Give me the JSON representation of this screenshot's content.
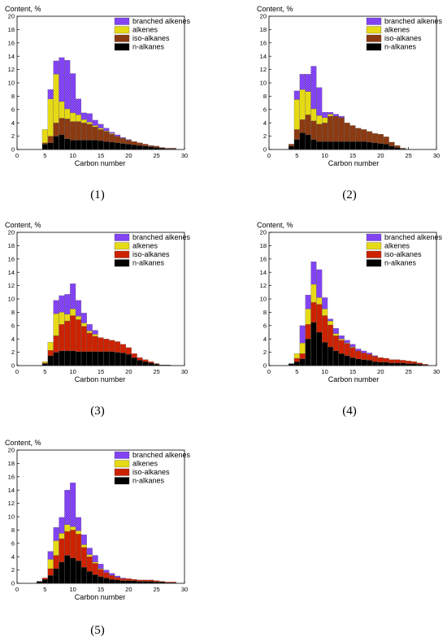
{
  "colors": {
    "n-alkanes": "#000000",
    "iso-alkanes": "#cc2200",
    "iso-alkanes-brown": "#8b3a12",
    "alkenes": "#f2e600",
    "branched alkenes": "#8a4dff",
    "legend_pattern_fill": "#7a3cff"
  },
  "chart_data": [
    {
      "type": "bar",
      "caption": "(1)",
      "title": "",
      "xlabel": "Carbon number",
      "ylabel": "Content, %",
      "xlim": [
        0,
        30
      ],
      "ylim": [
        0,
        20
      ],
      "xticks": [
        0,
        5,
        10,
        15,
        20,
        25,
        30
      ],
      "yticks": [
        0,
        2,
        4,
        6,
        8,
        10,
        12,
        14,
        16,
        18,
        20
      ],
      "stacked": true,
      "legend_position": "top-right",
      "legend": [
        "branched alkenes",
        "alkenes",
        "iso-alkanes",
        "n-alkanes"
      ],
      "iso_color": "#8b3a12",
      "categories": [
        5,
        6,
        7,
        8,
        9,
        10,
        11,
        12,
        13,
        14,
        15,
        16,
        17,
        18,
        19,
        20,
        21,
        22,
        23,
        24,
        25,
        26,
        27,
        28
      ],
      "series": [
        {
          "name": "n-alkanes",
          "values": [
            0.8,
            1.0,
            2.0,
            2.2,
            1.6,
            1.4,
            1.4,
            1.4,
            1.4,
            1.4,
            1.3,
            1.2,
            1.1,
            1.0,
            0.9,
            0.8,
            0.7,
            0.6,
            0.5,
            0.4,
            0.3,
            0.2,
            0.1,
            0.1
          ]
        },
        {
          "name": "iso-alkanes",
          "values": [
            0.2,
            1.0,
            2.0,
            2.5,
            3.0,
            2.8,
            2.8,
            2.6,
            2.4,
            2.0,
            1.7,
            1.5,
            1.2,
            1.0,
            0.8,
            0.6,
            0.5,
            0.4,
            0.3,
            0.2,
            0.2,
            0.1,
            0.1,
            0.1
          ]
        },
        {
          "name": "alkenes",
          "values": [
            2.0,
            5.6,
            7.3,
            2.5,
            1.5,
            1.3,
            1.0,
            0.5,
            0.3,
            0.2,
            0.2,
            0.1,
            0.1,
            0.0,
            0.0,
            0.0,
            0.0,
            0.0,
            0.0,
            0.0,
            0.0,
            0.0,
            0.0,
            0.0
          ]
        },
        {
          "name": "branched alkenes",
          "values": [
            0.0,
            1.4,
            2.0,
            6.6,
            7.3,
            5.9,
            2.4,
            1.0,
            1.3,
            0.8,
            0.6,
            0.4,
            0.2,
            0.2,
            0.1,
            0.1,
            0.0,
            0.0,
            0.0,
            0.0,
            0.0,
            0.0,
            0.0,
            0.0
          ]
        }
      ]
    },
    {
      "type": "bar",
      "caption": "(2)",
      "title": "",
      "xlabel": "Carbon number",
      "ylabel": "Content, %",
      "xlim": [
        0,
        30
      ],
      "ylim": [
        0,
        20
      ],
      "xticks": [
        0,
        5,
        10,
        15,
        20,
        25,
        30
      ],
      "yticks": [
        0,
        2,
        4,
        6,
        8,
        10,
        12,
        14,
        16,
        18,
        20
      ],
      "stacked": true,
      "legend_position": "top-right",
      "legend": [
        "branched alkenes",
        "alkenes",
        "iso-alkanes",
        "n-alkanes"
      ],
      "iso_color": "#8b3a12",
      "categories": [
        4,
        5,
        6,
        7,
        8,
        9,
        10,
        11,
        12,
        13,
        14,
        15,
        16,
        17,
        18,
        19,
        20,
        21,
        22,
        23,
        24
      ],
      "series": [
        {
          "name": "n-alkanes",
          "values": [
            0.5,
            1.5,
            2.5,
            2.2,
            1.5,
            1.2,
            1.2,
            1.2,
            1.2,
            1.2,
            1.2,
            1.2,
            1.2,
            1.2,
            1.1,
            1.0,
            0.9,
            0.8,
            0.5,
            0.3,
            0.1
          ]
        },
        {
          "name": "iso-alkanes",
          "values": [
            0.3,
            1.5,
            2.0,
            3.0,
            2.8,
            2.6,
            2.8,
            3.8,
            3.8,
            3.6,
            2.8,
            2.4,
            2.0,
            1.8,
            1.6,
            1.4,
            1.4,
            1.1,
            0.6,
            0.3,
            0.1
          ]
        },
        {
          "name": "alkenes",
          "values": [
            0.0,
            4.5,
            4.5,
            3.5,
            1.8,
            1.3,
            0.8,
            0.3,
            0.0,
            0.0,
            0.0,
            0.0,
            0.0,
            0.0,
            0.0,
            0.0,
            0.0,
            0.0,
            0.0,
            0.0,
            0.0
          ]
        },
        {
          "name": "branched alkenes",
          "values": [
            0.0,
            1.3,
            2.3,
            2.6,
            6.4,
            4.2,
            0.8,
            0.3,
            0.3,
            0.2,
            0.0,
            0.0,
            0.0,
            0.0,
            0.0,
            0.0,
            0.0,
            0.0,
            0.0,
            0.0,
            0.0
          ]
        }
      ]
    },
    {
      "type": "bar",
      "caption": "(3)",
      "title": "",
      "xlabel": "Carbon number",
      "ylabel": "Content, %",
      "xlim": [
        0,
        30
      ],
      "ylim": [
        0,
        20
      ],
      "xticks": [
        0,
        5,
        10,
        15,
        20,
        25,
        30
      ],
      "yticks": [
        0,
        2,
        4,
        6,
        8,
        10,
        12,
        14,
        16,
        18,
        20
      ],
      "stacked": true,
      "legend_position": "top-right",
      "legend": [
        "branched alkenes",
        "alkenes",
        "iso-alkanes",
        "n-alkanes"
      ],
      "iso_color": "#cc2200",
      "categories": [
        5,
        6,
        7,
        8,
        9,
        10,
        11,
        12,
        13,
        14,
        15,
        16,
        17,
        18,
        19,
        20,
        21,
        22,
        23,
        24,
        25,
        26,
        27
      ],
      "series": [
        {
          "name": "n-alkanes",
          "values": [
            0.3,
            1.5,
            2.0,
            2.2,
            2.2,
            2.2,
            2.1,
            2.1,
            2.1,
            2.1,
            2.1,
            2.1,
            2.1,
            2.0,
            1.9,
            1.7,
            1.2,
            0.8,
            0.6,
            0.4,
            0.2,
            0.1,
            0.1
          ]
        },
        {
          "name": "iso-alkanes",
          "values": [
            0.1,
            0.8,
            2.5,
            4.0,
            4.5,
            5.3,
            4.8,
            3.8,
            2.8,
            2.3,
            2.1,
            1.9,
            1.7,
            1.6,
            1.3,
            1.0,
            0.6,
            0.4,
            0.3,
            0.2,
            0.1,
            0.0,
            0.0
          ]
        },
        {
          "name": "alkenes",
          "values": [
            0.2,
            1.2,
            3.3,
            1.8,
            1.0,
            1.0,
            0.5,
            0.5,
            0.3,
            0.3,
            0.0,
            0.0,
            0.0,
            0.0,
            0.0,
            0.0,
            0.0,
            0.0,
            0.0,
            0.0,
            0.0,
            0.0,
            0.0
          ]
        },
        {
          "name": "branched alkenes",
          "values": [
            0.0,
            0.0,
            2.0,
            2.5,
            3.0,
            3.8,
            2.4,
            1.5,
            1.0,
            0.6,
            0.0,
            0.0,
            0.0,
            0.0,
            0.0,
            0.0,
            0.0,
            0.0,
            0.0,
            0.0,
            0.0,
            0.0,
            0.0
          ]
        }
      ]
    },
    {
      "type": "bar",
      "caption": "(4)",
      "title": "",
      "xlabel": "Carbon number",
      "ylabel": "Content, %",
      "xlim": [
        0,
        30
      ],
      "ylim": [
        0,
        20
      ],
      "xticks": [
        0,
        5,
        10,
        15,
        20,
        25,
        30
      ],
      "yticks": [
        0,
        2,
        4,
        6,
        8,
        10,
        12,
        14,
        16,
        18,
        20
      ],
      "stacked": true,
      "legend_position": "top-right",
      "legend": [
        "branched alkenes",
        "alkenes",
        "iso-alkanes",
        "n-alkanes"
      ],
      "iso_color": "#cc2200",
      "categories": [
        4,
        5,
        6,
        7,
        8,
        9,
        10,
        11,
        12,
        13,
        14,
        15,
        16,
        17,
        18,
        19,
        20,
        21,
        22,
        23,
        24,
        25,
        26,
        27,
        28
      ],
      "series": [
        {
          "name": "n-alkanes",
          "values": [
            0.3,
            0.6,
            1.0,
            4.0,
            6.5,
            5.0,
            3.5,
            2.8,
            2.2,
            1.8,
            1.5,
            1.2,
            1.0,
            0.9,
            0.8,
            0.6,
            0.5,
            0.5,
            0.4,
            0.4,
            0.4,
            0.3,
            0.3,
            0.2,
            0.1
          ]
        },
        {
          "name": "iso-alkanes",
          "values": [
            0.0,
            0.5,
            0.8,
            2.2,
            3.0,
            4.2,
            4.0,
            3.3,
            2.3,
            2.0,
            1.8,
            1.5,
            1.2,
            1.0,
            0.9,
            0.8,
            0.7,
            0.6,
            0.5,
            0.5,
            0.4,
            0.4,
            0.3,
            0.2,
            0.1
          ]
        },
        {
          "name": "alkenes",
          "values": [
            0.0,
            0.7,
            1.6,
            2.3,
            2.7,
            1.0,
            1.0,
            0.6,
            0.3,
            0.2,
            0.1,
            0.1,
            0.0,
            0.0,
            0.0,
            0.0,
            0.0,
            0.0,
            0.0,
            0.0,
            0.0,
            0.0,
            0.0,
            0.0,
            0.0
          ]
        },
        {
          "name": "branched alkenes",
          "values": [
            0.0,
            0.0,
            2.6,
            2.1,
            3.4,
            4.2,
            1.7,
            0.3,
            0.8,
            0.5,
            0.4,
            0.4,
            0.3,
            0.3,
            0.2,
            0.1,
            0.0,
            0.0,
            0.0,
            0.0,
            0.0,
            0.0,
            0.0,
            0.0,
            0.0
          ]
        }
      ]
    },
    {
      "type": "bar",
      "caption": "(5)",
      "title": "",
      "xlabel": "Carbon number",
      "ylabel": "Content, %",
      "xlim": [
        0,
        30
      ],
      "ylim": [
        0,
        20
      ],
      "xticks": [
        0,
        5,
        10,
        15,
        20,
        25,
        30
      ],
      "yticks": [
        0,
        2,
        4,
        6,
        8,
        10,
        12,
        14,
        16,
        18,
        20
      ],
      "stacked": true,
      "legend_position": "top-right",
      "legend": [
        "branched alkenes",
        "alkenes",
        "iso-alkanes",
        "n-alkanes"
      ],
      "iso_color": "#cc2200",
      "categories": [
        4,
        5,
        6,
        7,
        8,
        9,
        10,
        11,
        12,
        13,
        14,
        15,
        16,
        17,
        18,
        19,
        20,
        21,
        22,
        23,
        24,
        25,
        26,
        27,
        28
      ],
      "series": [
        {
          "name": "n-alkanes",
          "values": [
            0.3,
            0.6,
            1.2,
            2.2,
            3.2,
            4.2,
            3.8,
            3.4,
            2.4,
            1.8,
            1.3,
            1.0,
            0.8,
            0.6,
            0.5,
            0.4,
            0.4,
            0.4,
            0.3,
            0.3,
            0.3,
            0.2,
            0.2,
            0.1,
            0.1
          ]
        },
        {
          "name": "iso-alkanes",
          "values": [
            0.0,
            0.2,
            1.0,
            2.0,
            3.5,
            3.6,
            4.2,
            4.0,
            3.0,
            2.2,
            1.7,
            1.1,
            0.8,
            0.6,
            0.4,
            0.3,
            0.3,
            0.2,
            0.2,
            0.2,
            0.2,
            0.2,
            0.1,
            0.1,
            0.1
          ]
        },
        {
          "name": "alkenes",
          "values": [
            0.0,
            0.0,
            1.4,
            2.2,
            0.8,
            1.0,
            0.5,
            0.5,
            0.4,
            0.3,
            0.2,
            0.1,
            0.0,
            0.0,
            0.0,
            0.0,
            0.0,
            0.0,
            0.0,
            0.0,
            0.0,
            0.0,
            0.0,
            0.0,
            0.0
          ]
        },
        {
          "name": "branched alkenes",
          "values": [
            0.0,
            0.0,
            1.2,
            2.0,
            2.4,
            5.2,
            6.6,
            2.0,
            1.5,
            1.0,
            1.0,
            0.7,
            0.4,
            0.3,
            0.2,
            0.1,
            0.0,
            0.0,
            0.0,
            0.0,
            0.0,
            0.0,
            0.0,
            0.0,
            0.0
          ]
        }
      ]
    }
  ]
}
